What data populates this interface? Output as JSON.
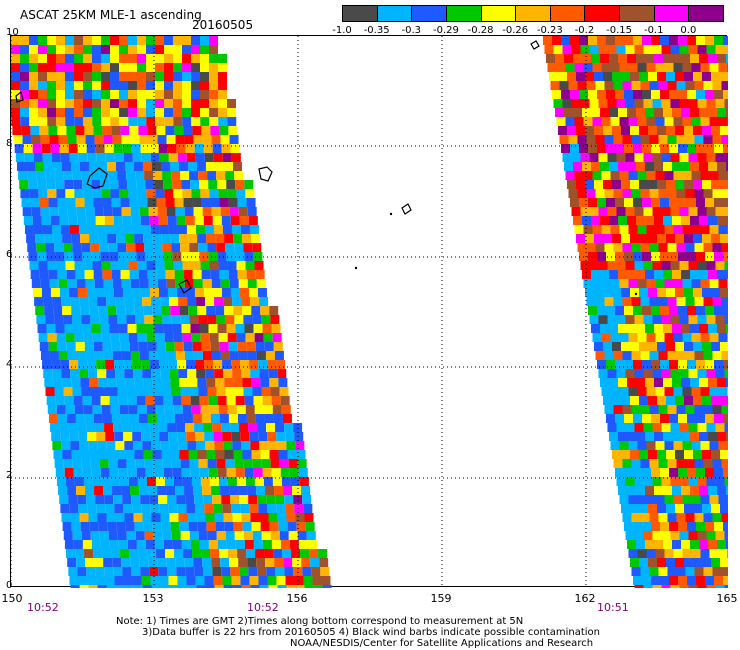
{
  "header": {
    "title": "ASCAT 25KM MLE-1 ascending",
    "date": "20160505"
  },
  "colorbar": {
    "labels": [
      "-1.0",
      "-0.35",
      "-0.3",
      "-0.29",
      "-0.28",
      "-0.26",
      "-0.23",
      "-0.2",
      "-0.15",
      "-0.1",
      "0.0"
    ],
    "colors": [
      "#4a4a4a",
      "#00b4ff",
      "#1e5aff",
      "#00c800",
      "#ffff00",
      "#ffb400",
      "#ff5a00",
      "#ff0000",
      "#a0522d",
      "#ff00ff",
      "#8c008c"
    ]
  },
  "axes": {
    "y_ticks": [
      "10",
      "8",
      "6",
      "4",
      "2",
      "0"
    ],
    "x_ticks": [
      "150",
      "153",
      "156",
      "159",
      "162",
      "165"
    ]
  },
  "times": [
    "10:52",
    "10:52",
    "10:51"
  ],
  "notes": {
    "line1": "Note: 1) Times are GMT 2)Times along bottom correspond to measurement at 5N",
    "line2": "3)Data buffer is 22 hrs from 20160505 4) Black wind barbs indicate possible contamination",
    "line3": "NOAA/NESDIS/Center for Satellite Applications and Research"
  }
}
